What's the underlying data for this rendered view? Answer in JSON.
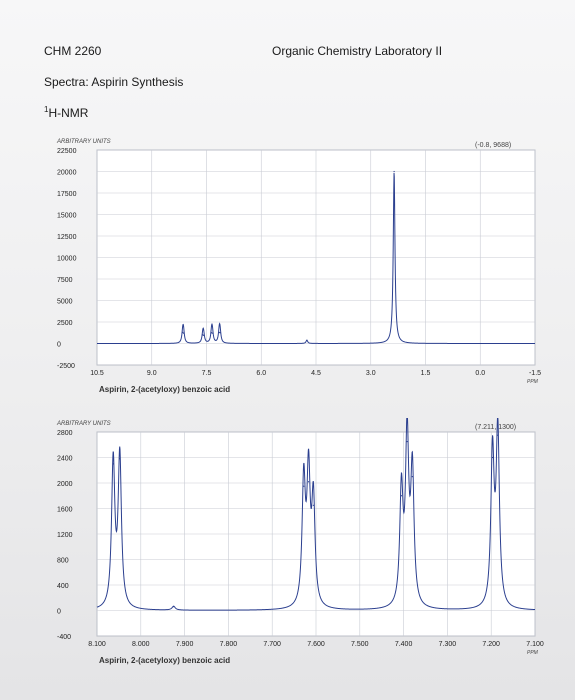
{
  "header": {
    "course": "CHM 2260",
    "lab": "Organic Chemistry Laboratory II",
    "subtitle": "Spectra:  Aspirin Synthesis",
    "nmr_sup": "1",
    "nmr_label": "H-NMR"
  },
  "colors": {
    "trace": "#2b3f8f",
    "grid": "#c9ccd4",
    "frame": "#9aa0ad",
    "label": "#222222"
  },
  "chart_data": [
    {
      "type": "line",
      "ylabel": "ARBITRARY UNITS",
      "xlabel": "Aspirin, 2-(acetyloxy) benzoic acid",
      "xunit": "PPM",
      "annotation": "(-0.8, 9688)",
      "x_reversed": true,
      "xlim": [
        10.5,
        -1.5
      ],
      "ylim": [
        -2500,
        22500
      ],
      "y_ticks": [
        22500,
        20000,
        17500,
        15000,
        12500,
        10000,
        7500,
        5000,
        2500,
        0,
        -2500
      ],
      "y_tick_labels": [
        "22500",
        "20000",
        "17500",
        "15000",
        "12500",
        "10000",
        "7500",
        "5000",
        "2500",
        "0",
        "-2500"
      ],
      "x_ticks": [
        10.5,
        9.0,
        7.5,
        6.0,
        4.5,
        3.0,
        1.5,
        0.0,
        -1.5
      ],
      "x_tick_labels": [
        "10.5",
        "9.0",
        "7.5",
        "6.0",
        "4.5",
        "3.0",
        "1.5",
        "0.0",
        "-1.5"
      ],
      "grid": true,
      "series": [
        {
          "peaks": [
            {
              "x": 8.15,
              "y": 1300
            },
            {
              "x": 8.13,
              "y": 1200
            },
            {
              "x": 7.6,
              "y": 1000
            },
            {
              "x": 7.58,
              "y": 950
            },
            {
              "x": 7.36,
              "y": 1250
            },
            {
              "x": 7.34,
              "y": 1200
            },
            {
              "x": 7.15,
              "y": 1300
            },
            {
              "x": 7.13,
              "y": 1250
            },
            {
              "x": 4.75,
              "y": 380
            },
            {
              "x": 2.36,
              "y": 20000
            }
          ]
        }
      ]
    },
    {
      "type": "line",
      "ylabel": "ARBITRARY UNITS",
      "xlabel": "Aspirin, 2-(acetyloxy) benzoic acid",
      "xunit": "PPM",
      "annotation": "(7.211, 1300)",
      "x_reversed": true,
      "xlim": [
        8.1,
        7.1
      ],
      "ylim": [
        -400,
        2800
      ],
      "y_ticks": [
        2800,
        2400,
        2000,
        1600,
        1200,
        800,
        400,
        0,
        -400
      ],
      "y_tick_labels": [
        "2800",
        "2400",
        "2000",
        "1600",
        "1200",
        "800",
        "400",
        "0",
        "-400"
      ],
      "x_ticks": [
        8.1,
        8.0,
        7.9,
        7.8,
        7.7,
        7.6,
        7.5,
        7.4,
        7.3,
        7.2,
        7.1
      ],
      "x_tick_labels": [
        "8.100",
        "8.000",
        "7.900",
        "7.800",
        "7.700",
        "7.600",
        "7.500",
        "7.400",
        "7.300",
        "7.200",
        "7.100"
      ],
      "grid": true,
      "series": [
        {
          "peaks": [
            {
              "x": 8.063,
              "y": 2300
            },
            {
              "x": 8.048,
              "y": 2380
            },
            {
              "x": 7.925,
              "y": 60
            },
            {
              "x": 7.628,
              "y": 1950
            },
            {
              "x": 7.617,
              "y": 2020
            },
            {
              "x": 7.606,
              "y": 1650
            },
            {
              "x": 7.405,
              "y": 1800
            },
            {
              "x": 7.392,
              "y": 2650
            },
            {
              "x": 7.38,
              "y": 2100
            },
            {
              "x": 7.197,
              "y": 2400
            },
            {
              "x": 7.185,
              "y": 2750
            }
          ]
        }
      ]
    }
  ]
}
